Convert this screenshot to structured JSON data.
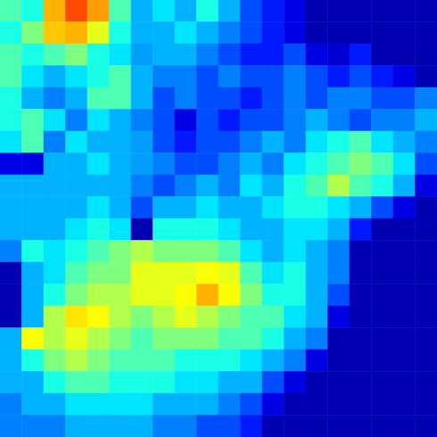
{
  "chart_data": {
    "type": "heatmap",
    "tick_labels": false,
    "grid": false,
    "zlim": [
      0,
      1
    ],
    "values": [
      [
        0.45,
        0.4,
        0.7,
        0.8,
        0.72,
        0.45,
        0.3,
        0.35,
        0.3,
        0.4,
        0.3,
        0.2,
        0.15,
        0.1,
        0.05,
        0.05,
        0.05,
        0.05,
        0.05,
        0.05
      ],
      [
        0.4,
        0.5,
        0.68,
        0.7,
        0.6,
        0.4,
        0.3,
        0.3,
        0.35,
        0.3,
        0.25,
        0.2,
        0.15,
        0.1,
        0.05,
        0.05,
        0.05,
        0.05,
        0.05,
        0.05
      ],
      [
        0.45,
        0.4,
        0.45,
        0.5,
        0.4,
        0.35,
        0.28,
        0.3,
        0.3,
        0.25,
        0.2,
        0.15,
        0.15,
        0.2,
        0.1,
        0.08,
        0.15,
        0.05,
        0.05,
        0.05
      ],
      [
        0.45,
        0.35,
        0.3,
        0.35,
        0.4,
        0.45,
        0.3,
        0.25,
        0.25,
        0.2,
        0.25,
        0.2,
        0.2,
        0.25,
        0.2,
        0.15,
        0.2,
        0.15,
        0.1,
        0.05
      ],
      [
        0.4,
        0.3,
        0.25,
        0.3,
        0.45,
        0.45,
        0.3,
        0.2,
        0.25,
        0.2,
        0.2,
        0.15,
        0.2,
        0.25,
        0.2,
        0.25,
        0.25,
        0.2,
        0.2,
        0.25
      ],
      [
        0.4,
        0.45,
        0.35,
        0.25,
        0.35,
        0.3,
        0.25,
        0.2,
        0.1,
        0.2,
        0.15,
        0.2,
        0.2,
        0.25,
        0.3,
        0.25,
        0.2,
        0.25,
        0.25,
        0.3
      ],
      [
        0.35,
        0.45,
        0.25,
        0.35,
        0.3,
        0.3,
        0.28,
        0.2,
        0.15,
        0.2,
        0.2,
        0.25,
        0.3,
        0.25,
        0.35,
        0.4,
        0.45,
        0.35,
        0.3,
        0.25
      ],
      [
        0.1,
        0.1,
        0.3,
        0.3,
        0.35,
        0.3,
        0.28,
        0.25,
        0.2,
        0.2,
        0.25,
        0.3,
        0.25,
        0.35,
        0.4,
        0.45,
        0.5,
        0.45,
        0.35,
        0.2
      ],
      [
        0.3,
        0.3,
        0.3,
        0.3,
        0.3,
        0.3,
        0.25,
        0.2,
        0.25,
        0.3,
        0.25,
        0.35,
        0.3,
        0.4,
        0.45,
        0.55,
        0.45,
        0.4,
        0.3,
        0.1
      ],
      [
        0.3,
        0.3,
        0.3,
        0.3,
        0.35,
        0.3,
        0.2,
        0.3,
        0.3,
        0.35,
        0.3,
        0.3,
        0.35,
        0.4,
        0.4,
        0.35,
        0.3,
        0.2,
        0.1,
        0.05
      ],
      [
        0.3,
        0.3,
        0.3,
        0.35,
        0.4,
        0.35,
        0.05,
        0.4,
        0.4,
        0.4,
        0.35,
        0.3,
        0.3,
        0.35,
        0.35,
        0.3,
        0.15,
        0.05,
        0.05,
        0.05
      ],
      [
        0.25,
        0.4,
        0.35,
        0.4,
        0.45,
        0.5,
        0.55,
        0.5,
        0.5,
        0.5,
        0.45,
        0.35,
        0.3,
        0.35,
        0.3,
        0.25,
        0.05,
        0.05,
        0.05,
        0.05
      ],
      [
        0.05,
        0.3,
        0.35,
        0.45,
        0.5,
        0.5,
        0.6,
        0.6,
        0.6,
        0.62,
        0.6,
        0.45,
        0.35,
        0.4,
        0.3,
        0.25,
        0.05,
        0.05,
        0.05,
        0.05
      ],
      [
        0.05,
        0.3,
        0.4,
        0.5,
        0.55,
        0.55,
        0.6,
        0.6,
        0.62,
        0.7,
        0.62,
        0.5,
        0.4,
        0.4,
        0.3,
        0.2,
        0.05,
        0.05,
        0.05,
        0.05
      ],
      [
        0.05,
        0.3,
        0.55,
        0.65,
        0.62,
        0.55,
        0.5,
        0.55,
        0.6,
        0.55,
        0.5,
        0.45,
        0.45,
        0.35,
        0.3,
        0.1,
        0.05,
        0.05,
        0.05,
        0.05
      ],
      [
        0.3,
        0.62,
        0.55,
        0.6,
        0.55,
        0.5,
        0.45,
        0.5,
        0.5,
        0.5,
        0.45,
        0.45,
        0.4,
        0.3,
        0.25,
        0.05,
        0.05,
        0.05,
        0.05,
        0.05
      ],
      [
        0.3,
        0.4,
        0.5,
        0.55,
        0.5,
        0.45,
        0.45,
        0.45,
        0.4,
        0.4,
        0.4,
        0.35,
        0.3,
        0.25,
        0.1,
        0.05,
        0.05,
        0.05,
        0.05,
        0.05
      ],
      [
        0.3,
        0.3,
        0.4,
        0.45,
        0.45,
        0.4,
        0.4,
        0.4,
        0.35,
        0.35,
        0.3,
        0.3,
        0.2,
        0.1,
        0.05,
        0.05,
        0.05,
        0.05,
        0.05,
        0.05
      ],
      [
        0.25,
        0.3,
        0.3,
        0.35,
        0.35,
        0.35,
        0.35,
        0.3,
        0.3,
        0.3,
        0.25,
        0.2,
        0.1,
        0.05,
        0.05,
        0.05,
        0.05,
        0.05,
        0.05,
        0.05
      ],
      [
        0.25,
        0.25,
        0.25,
        0.3,
        0.3,
        0.3,
        0.3,
        0.25,
        0.25,
        0.2,
        0.2,
        0.15,
        0.05,
        0.05,
        0.05,
        0.05,
        0.05,
        0.05,
        0.05,
        0.05
      ]
    ]
  }
}
